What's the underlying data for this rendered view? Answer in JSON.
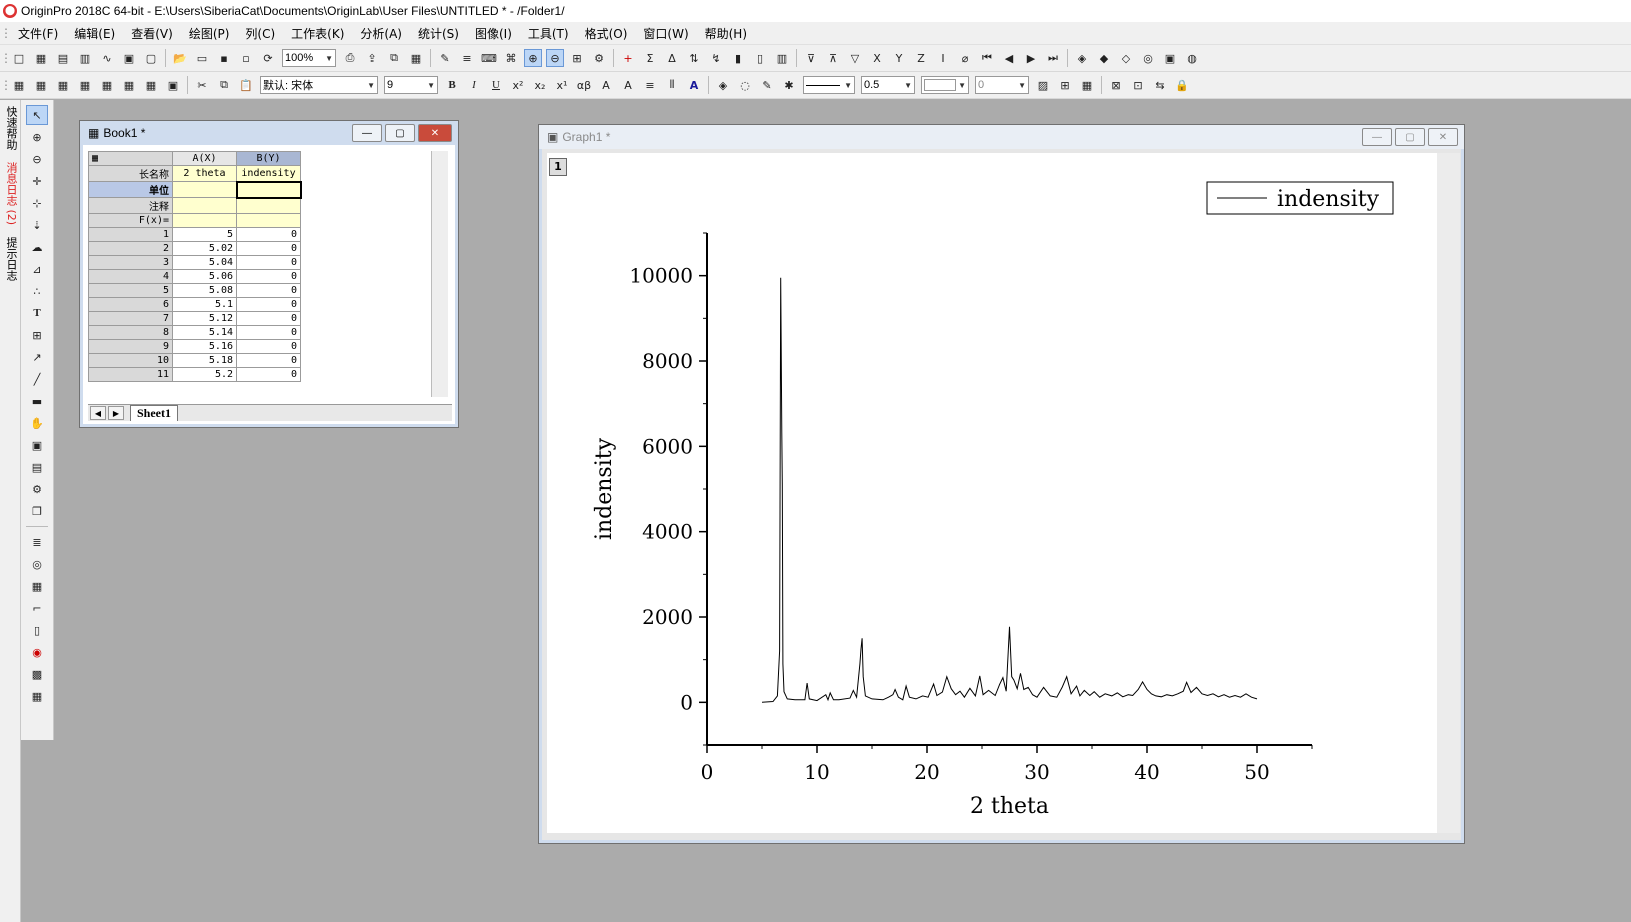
{
  "app": {
    "title": "OriginPro 2018C 64-bit - E:\\Users\\SiberiaCat\\Documents\\OriginLab\\User Files\\UNTITLED * - /Folder1/"
  },
  "menu": [
    "文件(F)",
    "编辑(E)",
    "查看(V)",
    "绘图(P)",
    "列(C)",
    "工作表(K)",
    "分析(A)",
    "统计(S)",
    "图像(I)",
    "工具(T)",
    "格式(O)",
    "窗口(W)",
    "帮助(H)"
  ],
  "toolbar": {
    "zoom": "100%",
    "font_name": "默认: 宋体",
    "font_size": "9",
    "line_width": "0.5",
    "fill_value": "0"
  },
  "left_panel": {
    "tabs": [
      "快速帮助",
      "消息日志 (2)",
      "提示日志"
    ]
  },
  "book": {
    "title": "Book1 *",
    "col_a_header": "A(X)",
    "col_b_header": "B(Y)",
    "row_labels": [
      "长名称",
      "单位",
      "注释",
      "F(x)="
    ],
    "long_name_a": "2  theta",
    "long_name_b": "indensity",
    "rows": [
      {
        "n": "1",
        "a": "5",
        "b": "0"
      },
      {
        "n": "2",
        "a": "5.02",
        "b": "0"
      },
      {
        "n": "3",
        "a": "5.04",
        "b": "0"
      },
      {
        "n": "4",
        "a": "5.06",
        "b": "0"
      },
      {
        "n": "5",
        "a": "5.08",
        "b": "0"
      },
      {
        "n": "6",
        "a": "5.1",
        "b": "0"
      },
      {
        "n": "7",
        "a": "5.12",
        "b": "0"
      },
      {
        "n": "8",
        "a": "5.14",
        "b": "0"
      },
      {
        "n": "9",
        "a": "5.16",
        "b": "0"
      },
      {
        "n": "10",
        "a": "5.18",
        "b": "0"
      },
      {
        "n": "11",
        "a": "5.2",
        "b": "0"
      }
    ],
    "sheet_tab": "Sheet1"
  },
  "graph": {
    "title": "Graph1 *",
    "layer": "1"
  },
  "chart_data": {
    "type": "line",
    "title": "",
    "xlabel": "2  theta",
    "ylabel": "indensity",
    "xlim": [
      0,
      55
    ],
    "ylim": [
      -1000,
      11000
    ],
    "xticks": [
      "0",
      "10",
      "20",
      "30",
      "40",
      "50"
    ],
    "yticks": [
      "0",
      "2000",
      "4000",
      "6000",
      "8000",
      "10000"
    ],
    "legend": {
      "position": "top-right",
      "entries": [
        "indensity"
      ]
    },
    "grid": false,
    "series": [
      {
        "name": "indensity",
        "x": [
          5,
          6,
          6.4,
          6.6,
          6.7,
          6.8,
          6.85,
          6.9,
          7.0,
          7.3,
          8,
          8.9,
          9.1,
          9.3,
          10,
          10.8,
          11,
          11.2,
          11.5,
          12,
          13,
          13.3,
          13.6,
          13.9,
          14.0,
          14.1,
          14.2,
          14.4,
          15,
          16,
          16.5,
          16.9,
          17.1,
          17.4,
          17.8,
          18.1,
          18.4,
          19,
          19.6,
          20.1,
          20.6,
          20.9,
          21.4,
          21.8,
          22.2,
          22.6,
          23.0,
          23.4,
          23.9,
          24.4,
          24.8,
          25.1,
          25.6,
          26.2,
          26.6,
          26.9,
          27.2,
          27.5,
          27.7,
          27.9,
          28.2,
          28.5,
          28.8,
          29.2,
          29.6,
          30.0,
          30.6,
          31.2,
          31.8,
          32.3,
          32.7,
          33.1,
          33.6,
          33.9,
          34.3,
          34.8,
          35.2,
          35.7,
          36.2,
          36.8,
          37.3,
          37.8,
          38.3,
          38.7,
          39.2,
          39.6,
          40.0,
          40.4,
          40.8,
          41.3,
          41.8,
          42.3,
          42.8,
          43.3,
          43.6,
          44.0,
          44.5,
          45.0,
          45.5,
          46.0,
          46.5,
          47.0,
          47.5,
          48.0,
          48.5,
          49.0,
          49.5,
          50
        ],
        "y": [
          0,
          20,
          150,
          1200,
          9950,
          6300,
          5100,
          900,
          250,
          80,
          60,
          60,
          450,
          80,
          40,
          180,
          60,
          220,
          60,
          60,
          100,
          280,
          120,
          900,
          1250,
          1500,
          600,
          150,
          80,
          60,
          120,
          180,
          300,
          120,
          60,
          380,
          120,
          80,
          150,
          120,
          430,
          160,
          240,
          600,
          320,
          180,
          260,
          120,
          330,
          150,
          620,
          180,
          280,
          160,
          420,
          580,
          260,
          1770,
          600,
          520,
          320,
          680,
          300,
          350,
          180,
          120,
          350,
          150,
          120,
          360,
          600,
          200,
          380,
          150,
          280,
          160,
          250,
          120,
          200,
          150,
          220,
          130,
          180,
          160,
          300,
          480,
          300,
          200,
          150,
          130,
          180,
          150,
          200,
          260,
          470,
          230,
          350,
          200,
          160,
          200,
          130,
          180,
          120,
          160,
          120,
          200,
          120,
          80
        ]
      }
    ]
  },
  "colors": {
    "mdi_bg": "#ababab",
    "window_frame": "#cfdcee",
    "chart_line": "#000000"
  }
}
